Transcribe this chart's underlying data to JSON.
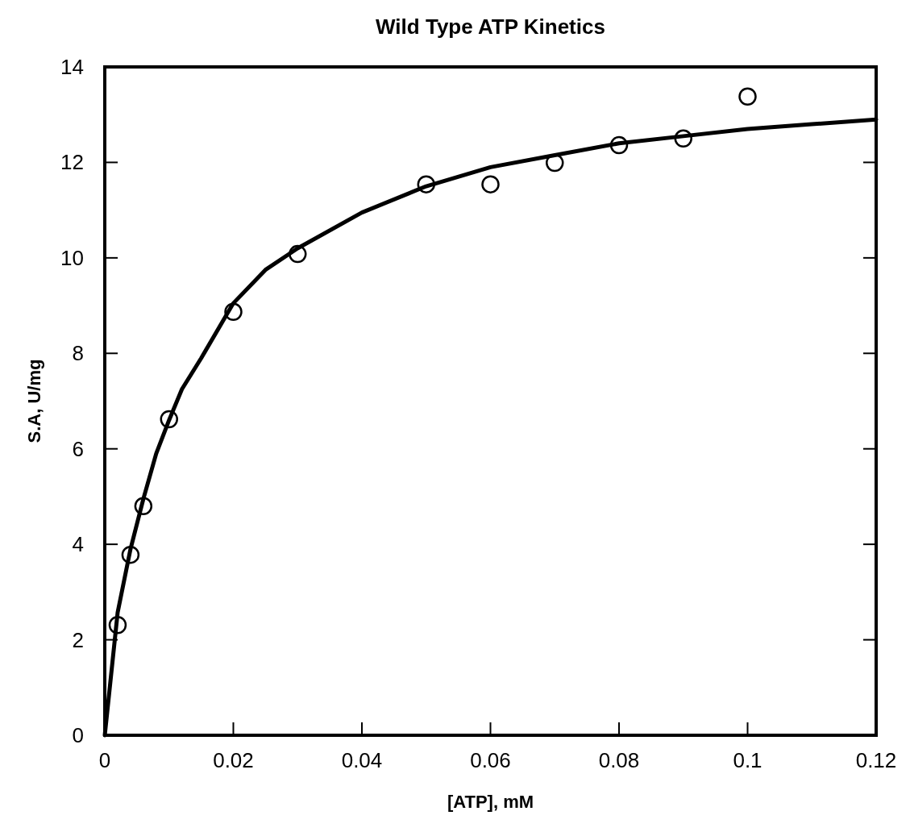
{
  "chart_data": {
    "type": "scatter",
    "title": "Wild Type ATP Kinetics",
    "xlabel": "[ATP], mM",
    "ylabel": "S.A, U/mg",
    "xlim": [
      0,
      0.12
    ],
    "xticks": [
      0,
      0.02,
      0.04,
      0.06,
      0.08,
      0.1,
      0.12
    ],
    "ylim": [
      0,
      14
    ],
    "yticks": [
      0,
      2,
      4,
      6,
      8,
      10,
      12,
      14
    ],
    "grid": false,
    "series": [
      {
        "type": "scatter",
        "color": "#000000",
        "marker": "circle",
        "x": [
          0.002,
          0.004,
          0.006,
          0.01,
          0.02,
          0.03,
          0.05,
          0.06,
          0.07,
          0.08,
          0.09,
          0.1
        ],
        "values": [
          2.31,
          3.78,
          4.8,
          6.62,
          8.87,
          10.08,
          11.54,
          11.54,
          11.99,
          12.36,
          12.5,
          13.38
        ]
      },
      {
        "type": "line",
        "color": "#000000",
        "marker": "none",
        "line_style": "solid",
        "x": [
          0,
          0.002,
          0.004,
          0.006,
          0.008,
          0.01,
          0.012,
          0.015,
          0.02,
          0.025,
          0.03,
          0.04,
          0.05,
          0.06,
          0.07,
          0.08,
          0.09,
          0.1,
          0.11,
          0.12
        ],
        "values": [
          0,
          2.57,
          3.9,
          4.95,
          5.9,
          6.6,
          7.25,
          7.9,
          9.05,
          9.75,
          10.2,
          10.95,
          11.5,
          11.9,
          12.15,
          12.4,
          12.55,
          12.7,
          12.8,
          12.9
        ]
      }
    ]
  }
}
